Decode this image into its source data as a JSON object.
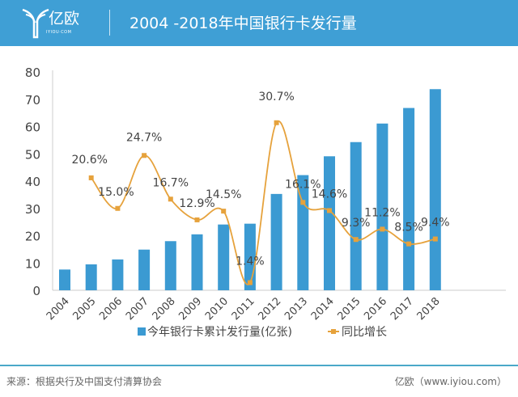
{
  "header": {
    "logo_cn": "亿欧",
    "logo_en": "IYIOU·COM",
    "title": "2004 -2018年中国银行卡发行量"
  },
  "colors": {
    "header": "#3f9fd5",
    "bar": "#3b9ad2",
    "line": "#e6a23c"
  },
  "chart_data": {
    "type": "bar+line",
    "title": "2004 -2018年中国银行卡发行量",
    "categories": [
      "2004",
      "2005",
      "2006",
      "2007",
      "2008",
      "2009",
      "2010",
      "2011",
      "2012",
      "2013",
      "2014",
      "2015",
      "2016",
      "2017",
      "2018"
    ],
    "ylim": [
      0,
      80
    ],
    "yticks": [
      "0",
      "10",
      "20",
      "30",
      "40",
      "50",
      "60",
      "70",
      "80"
    ],
    "series": [
      {
        "name": "今年银行卡累计发行量(亿张)",
        "type": "bar",
        "values": [
          7.6,
          9.5,
          11.3,
          14.9,
          18.0,
          20.5,
          24.1,
          24.4,
          35.3,
          42.2,
          49.1,
          54.3,
          61.1,
          66.8,
          73.7
        ]
      },
      {
        "name": "同比增长",
        "type": "line",
        "unit": "%",
        "values": [
          null,
          20.6,
          15.0,
          24.7,
          16.7,
          12.9,
          14.5,
          1.4,
          30.7,
          16.1,
          14.6,
          9.3,
          11.2,
          8.5,
          9.4
        ],
        "labels": [
          null,
          "20.6%",
          "15.0%",
          "24.7%",
          "16.7%",
          "12.9%",
          "14.5%",
          "1.4%",
          "30.7%",
          "16.1%",
          "14.6%",
          "9.3%",
          "11.2%",
          "8.5%",
          "9.4%"
        ]
      }
    ],
    "legend": "bottom",
    "grid": false
  },
  "footer": {
    "source": "来源：根据央行及中国支付清算协会",
    "brand": "亿欧（www.iyiou.com）"
  }
}
